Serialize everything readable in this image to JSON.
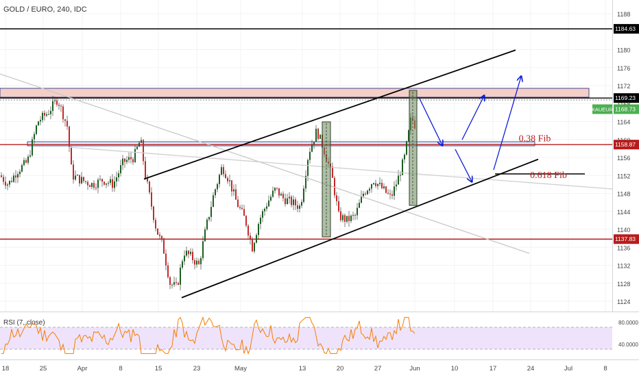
{
  "chart_data": {
    "type": "candlestick",
    "title": "GOLD / EURO, 240, IDC",
    "symbol_badge": "XAUEUR",
    "y_ticks": [
      1124,
      1128,
      1132,
      1136,
      1140,
      1144,
      1148,
      1152,
      1156,
      1160,
      1164,
      1168,
      1172,
      1176,
      1180,
      1188
    ],
    "ylim": [
      1122.0,
      1189.8
    ],
    "x_ticks": [
      {
        "label": "18",
        "pos": 8
      },
      {
        "label": "25",
        "pos": 63
      },
      {
        "label": "Apr",
        "pos": 120
      },
      {
        "label": "8",
        "pos": 176
      },
      {
        "label": "15",
        "pos": 231
      },
      {
        "label": "23",
        "pos": 287
      },
      {
        "label": "May",
        "pos": 351
      },
      {
        "label": "13",
        "pos": 441
      },
      {
        "label": "20",
        "pos": 496
      },
      {
        "label": "27",
        "pos": 551
      },
      {
        "label": "Jun",
        "pos": 605
      },
      {
        "label": "10",
        "pos": 663
      },
      {
        "label": "17",
        "pos": 719
      },
      {
        "label": "24",
        "pos": 774
      },
      {
        "label": "Jul",
        "pos": 829
      },
      {
        "label": "8",
        "pos": 883
      }
    ],
    "horizontal_levels": [
      {
        "value": 1184.63,
        "label": "1184.63",
        "color": "#000000"
      },
      {
        "value": 1169.23,
        "label": "1169.23",
        "color": "#000000"
      },
      {
        "value": 1168.73,
        "label": "1168.73",
        "color": "#4caf50"
      },
      {
        "value": 1158.87,
        "label": "1158.87",
        "color": "#b71c1c"
      },
      {
        "value": 1137.83,
        "label": "1137.83",
        "color": "#b71c1c"
      }
    ],
    "fib_labels": [
      {
        "text": "0.38 Fib",
        "value": 1159.6,
        "pos": 780
      },
      {
        "text": "0.618 Fib",
        "value": 1151.4,
        "pos": 800
      }
    ],
    "channel": {
      "upper": [
        [
          210,
          1151.2
        ],
        [
          752,
          1179.9
        ]
      ],
      "lower": [
        [
          265,
          1124.8
        ],
        [
          785,
          1155.6
        ]
      ]
    },
    "price_path": [
      [
        0,
        1152
      ],
      [
        12,
        1150
      ],
      [
        25,
        1153
      ],
      [
        40,
        1155
      ],
      [
        55,
        1164
      ],
      [
        70,
        1166
      ],
      [
        84,
        1169
      ],
      [
        98,
        1163
      ],
      [
        105,
        1152
      ],
      [
        118,
        1151
      ],
      [
        135,
        1150
      ],
      [
        150,
        1151
      ],
      [
        165,
        1150
      ],
      [
        180,
        1155
      ],
      [
        195,
        1156
      ],
      [
        205,
        1160
      ],
      [
        212,
        1152
      ],
      [
        220,
        1146
      ],
      [
        228,
        1140
      ],
      [
        238,
        1136
      ],
      [
        248,
        1128
      ],
      [
        258,
        1127
      ],
      [
        268,
        1135
      ],
      [
        278,
        1134
      ],
      [
        290,
        1132
      ],
      [
        300,
        1140
      ],
      [
        312,
        1148
      ],
      [
        324,
        1154
      ],
      [
        334,
        1151
      ],
      [
        345,
        1146
      ],
      [
        358,
        1142
      ],
      [
        368,
        1136
      ],
      [
        378,
        1142
      ],
      [
        390,
        1146
      ],
      [
        402,
        1149
      ],
      [
        412,
        1147
      ],
      [
        425,
        1146
      ],
      [
        438,
        1145
      ],
      [
        450,
        1157
      ],
      [
        462,
        1162
      ],
      [
        472,
        1158
      ],
      [
        484,
        1152
      ],
      [
        494,
        1143
      ],
      [
        506,
        1142
      ],
      [
        518,
        1143
      ],
      [
        530,
        1148
      ],
      [
        545,
        1151
      ],
      [
        558,
        1149
      ],
      [
        570,
        1147
      ],
      [
        580,
        1151
      ],
      [
        590,
        1156
      ],
      [
        600,
        1165
      ],
      [
        606,
        1163
      ]
    ],
    "rsi": {
      "label": "RSI (7, close)",
      "ticks": [
        80.0,
        40.0
      ],
      "tick_labels": [
        "80.0000",
        "40.0000"
      ],
      "band": [
        70,
        30
      ],
      "ylim": [
        15,
        95
      ]
    },
    "colors": {
      "up": "#1b5e20",
      "down": "#c62828",
      "projection": "#0d1cd6",
      "rsi": "#f57c00",
      "grid": "#f0f3f6"
    }
  }
}
